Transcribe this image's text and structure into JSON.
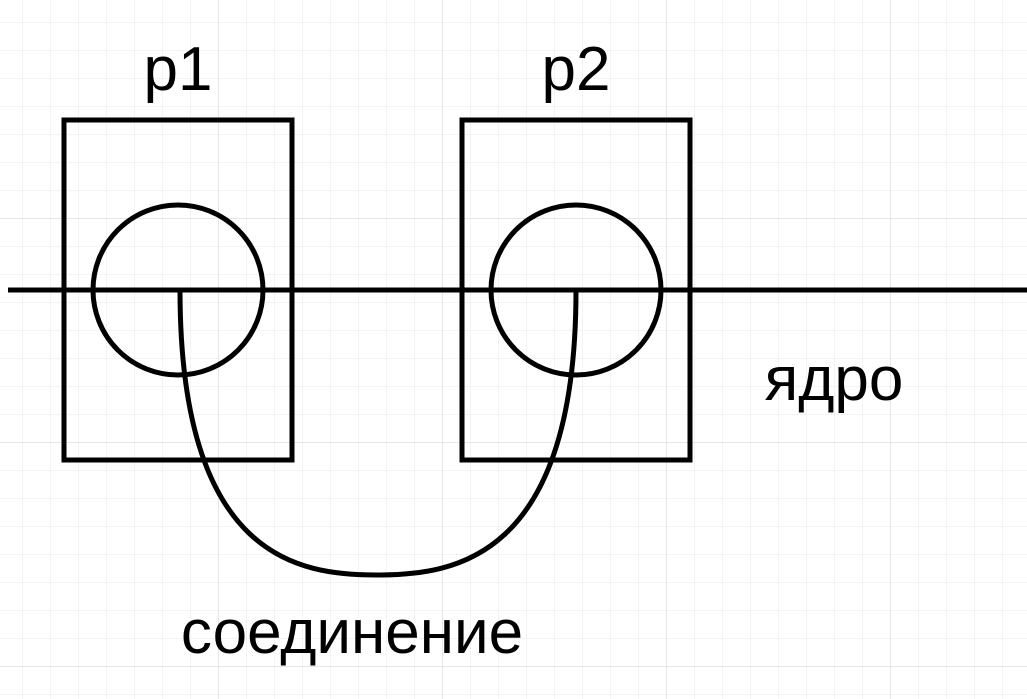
{
  "labels": {
    "process1": "p1",
    "process2": "p2",
    "kernel": "ядро",
    "connection": "соединение"
  },
  "colors": {
    "stroke": "#000000",
    "text": "#000000",
    "background": "#ffffff",
    "grid": "#e6e6e6"
  }
}
